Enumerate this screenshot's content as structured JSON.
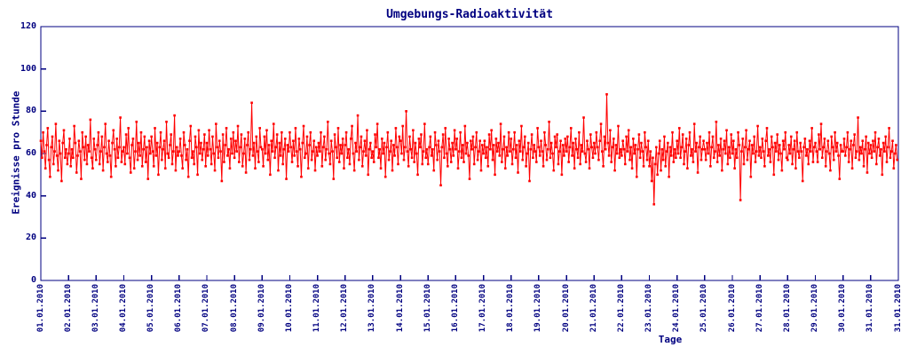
{
  "chart_data": {
    "type": "line",
    "title": "Umgebungs-Radioaktivität",
    "xlabel": "Tage",
    "ylabel": "Ereignisse pro Stunde",
    "ylim": [
      0,
      120
    ],
    "yticks": [
      0,
      20,
      40,
      60,
      80,
      100,
      120
    ],
    "x_tick_labels": [
      "01.01.2010",
      "02.01.2010",
      "03.01.2010",
      "04.01.2010",
      "05.01.2010",
      "06.01.2010",
      "07.01.2010",
      "08.01.2010",
      "09.01.2010",
      "10.01.2010",
      "11.01.2010",
      "12.01.2010",
      "13.01.2010",
      "14.01.2010",
      "15.01.2010",
      "16.01.2010",
      "17.01.2010",
      "18.01.2010",
      "19.01.2010",
      "20.01.2010",
      "21.01.2010",
      "22.01.2010",
      "23.01.2010",
      "24.01.2010",
      "25.01.2010",
      "26.01.2010",
      "27.01.2010",
      "28.01.2010",
      "29.01.2010",
      "30.01.2010",
      "31.01.2010",
      "31.01.2010"
    ],
    "points_per_day": 24,
    "days": 31,
    "grid": false,
    "legend": null,
    "marker": "square",
    "series_color": "#ff0000",
    "axis_color": "#000080",
    "background_color": "#ffffff",
    "values": [
      66,
      58,
      70,
      61,
      53,
      64,
      72,
      57,
      49,
      63,
      68,
      55,
      61,
      74,
      59,
      52,
      66,
      60,
      47,
      65,
      71,
      58,
      62,
      55,
      60,
      67,
      54,
      62,
      58,
      73,
      65,
      51,
      59,
      66,
      61,
      48,
      70,
      63,
      57,
      68,
      55,
      64,
      61,
      76,
      58,
      53,
      67,
      62,
      57,
      64,
      70,
      55,
      61,
      68,
      52,
      63,
      74,
      60,
      56,
      66,
      59,
      49,
      65,
      71,
      62,
      54,
      67,
      58,
      63,
      77,
      56,
      61,
      63,
      55,
      69,
      60,
      72,
      58,
      51,
      64,
      67,
      53,
      61,
      75,
      57,
      65,
      59,
      70,
      54,
      62,
      68,
      56,
      63,
      48,
      66,
      60,
      68,
      61,
      54,
      72,
      59,
      65,
      50,
      63,
      70,
      57,
      62,
      66,
      53,
      75,
      60,
      58,
      64,
      69,
      55,
      61,
      78,
      52,
      63,
      59,
      61,
      67,
      59,
      53,
      70,
      64,
      57,
      62,
      49,
      66,
      73,
      58,
      61,
      55,
      68,
      63,
      50,
      71,
      60,
      65,
      57,
      62,
      69,
      54,
      65,
      59,
      71,
      62,
      55,
      68,
      60,
      52,
      74,
      63,
      58,
      66,
      61,
      47,
      69,
      56,
      64,
      72,
      59,
      62,
      53,
      67,
      60,
      70,
      58,
      66,
      61,
      73,
      56,
      63,
      69,
      54,
      60,
      67,
      51,
      64,
      70,
      57,
      62,
      84,
      59,
      65,
      53,
      68,
      61,
      56,
      72,
      63,
      62,
      54,
      68,
      60,
      71,
      57,
      64,
      50,
      66,
      61,
      74,
      58,
      63,
      69,
      52,
      65,
      59,
      70,
      55,
      62,
      67,
      48,
      64,
      61,
      70,
      63,
      56,
      66,
      59,
      72,
      61,
      54,
      67,
      62,
      49,
      65,
      73,
      58,
      60,
      68,
      53,
      64,
      70,
      57,
      61,
      66,
      52,
      63,
      59,
      65,
      61,
      70,
      54,
      63,
      68,
      57,
      62,
      75,
      60,
      55,
      66,
      61,
      48,
      69,
      63,
      58,
      72,
      56,
      64,
      60,
      67,
      53,
      64,
      70,
      58,
      62,
      55,
      67,
      73,
      60,
      52,
      65,
      61,
      78,
      57,
      63,
      68,
      54,
      61,
      66,
      59,
      71,
      50,
      62,
      65,
      58,
      61,
      56,
      69,
      63,
      74,
      58,
      62,
      53,
      67,
      60,
      65,
      49,
      63,
      70,
      57,
      61,
      66,
      52,
      64,
      59,
      72,
      63,
      55,
      68,
      66,
      60,
      73,
      57,
      63,
      80,
      61,
      54,
      68,
      62,
      58,
      71,
      56,
      65,
      60,
      50,
      67,
      63,
      69,
      55,
      61,
      74,
      58,
      62,
      55,
      63,
      68,
      59,
      62,
      52,
      70,
      64,
      57,
      66,
      61,
      45,
      63,
      69,
      58,
      72,
      60,
      54,
      67,
      62,
      56,
      65,
      59,
      71,
      62,
      67,
      53,
      61,
      70,
      58,
      64,
      56,
      73,
      60,
      65,
      59,
      48,
      66,
      62,
      68,
      55,
      63,
      70,
      57,
      61,
      66,
      52,
      64,
      60,
      66,
      58,
      63,
      54,
      69,
      62,
      71,
      57,
      64,
      50,
      67,
      61,
      65,
      59,
      74,
      56,
      62,
      68,
      53,
      63,
      59,
      70,
      61,
      67,
      55,
      62,
      70,
      58,
      64,
      51,
      66,
      61,
      73,
      57,
      63,
      68,
      54,
      60,
      65,
      47,
      62,
      69,
      58,
      64,
      61,
      56,
      72,
      63,
      59,
      66,
      61,
      54,
      70,
      64,
      57,
      62,
      75,
      58,
      65,
      60,
      52,
      68,
      63,
      69,
      55,
      61,
      66,
      50,
      64,
      59,
      67,
      61,
      68,
      56,
      63,
      72,
      59,
      65,
      53,
      67,
      62,
      58,
      70,
      55,
      64,
      61,
      77,
      60,
      56,
      66,
      62,
      53,
      69,
      63,
      58,
      65,
      60,
      70,
      63,
      57,
      66,
      74,
      61,
      54,
      68,
      62,
      88,
      65,
      59,
      71,
      56,
      63,
      67,
      52,
      64,
      60,
      73,
      58,
      62,
      59,
      66,
      62,
      55,
      68,
      61,
      71,
      57,
      63,
      53,
      67,
      60,
      64,
      49,
      62,
      69,
      58,
      65,
      61,
      54,
      70,
      63,
      57,
      66,
      54,
      61,
      47,
      58,
      36,
      55,
      63,
      50,
      60,
      66,
      52,
      62,
      57,
      68,
      54,
      61,
      65,
      49,
      63,
      59,
      70,
      56,
      62,
      58,
      66,
      60,
      72,
      58,
      63,
      69,
      55,
      61,
      67,
      53,
      64,
      70,
      59,
      62,
      56,
      74,
      61,
      65,
      51,
      63,
      68,
      57,
      62,
      66,
      62,
      57,
      65,
      60,
      70,
      54,
      63,
      68,
      58,
      61,
      75,
      56,
      64,
      59,
      67,
      52,
      62,
      66,
      60,
      71,
      55,
      63,
      58,
      69,
      60,
      66,
      53,
      62,
      58,
      70,
      64,
      38,
      61,
      67,
      55,
      63,
      71,
      57,
      62,
      66,
      49,
      64,
      60,
      68,
      56,
      61,
      73,
      59,
      63,
      58,
      67,
      61,
      54,
      66,
      72,
      59,
      62,
      56,
      68,
      63,
      50,
      65,
      61,
      69,
      57,
      64,
      60,
      52,
      66,
      62,
      70,
      58,
      57,
      64,
      60,
      68,
      55,
      62,
      66,
      53,
      70,
      61,
      58,
      65,
      61,
      47,
      63,
      67,
      59,
      62,
      55,
      66,
      61,
      72,
      56,
      63,
      65,
      61,
      56,
      69,
      62,
      74,
      58,
      63,
      67,
      54,
      61,
      66,
      60,
      52,
      68,
      63,
      57,
      70,
      61,
      65,
      59,
      48,
      64,
      61,
      61,
      67,
      59,
      63,
      70,
      56,
      62,
      66,
      53,
      64,
      69,
      58,
      61,
      77,
      57,
      63,
      60,
      66,
      54,
      62,
      68,
      51,
      65,
      60,
      64,
      58,
      66,
      61,
      70,
      55,
      63,
      67,
      59,
      62,
      50,
      65,
      61,
      68,
      56,
      63,
      72,
      58,
      61,
      66,
      53,
      60,
      64,
      57
    ]
  }
}
